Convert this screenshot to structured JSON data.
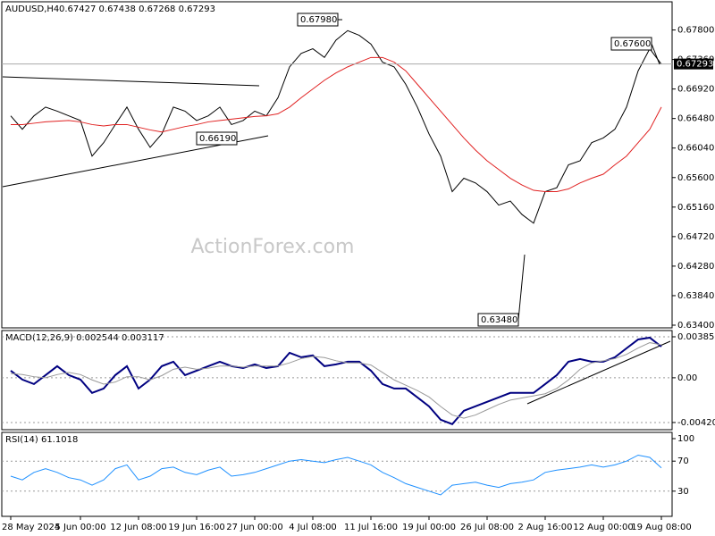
{
  "chart_data": [
    {
      "type": "line",
      "title": "AUDUSD,H4",
      "subtitle": "0.67427 0.67438 0.67268 0.67293",
      "watermark": "ActionForex.com",
      "categories": [
        "28 May 2024",
        null,
        null,
        null,
        null,
        null,
        "5 Jun 00:00",
        null,
        null,
        null,
        null,
        "12 Jun 08:00",
        null,
        null,
        null,
        null,
        "19 Jun 16:00",
        null,
        null,
        null,
        null,
        "27 Jun 00:00",
        null,
        null,
        null,
        null,
        "4 Jul 08:00",
        null,
        null,
        null,
        null,
        "11 Jul 16:00",
        null,
        null,
        null,
        null,
        "19 Jul 00:00",
        null,
        null,
        null,
        null,
        "26 Jul 08:00",
        null,
        null,
        null,
        null,
        "2 Aug 16:00",
        null,
        null,
        null,
        null,
        "12 Aug 00:00",
        null,
        null,
        null,
        null,
        "19 Aug 08:00"
      ],
      "series": [
        {
          "color": "#000000",
          "values": [
            0.6652,
            0.6632,
            0.6652,
            0.6665,
            0.6659,
            0.6652,
            0.6645,
            0.6592,
            0.6612,
            0.6639,
            0.6665,
            0.6632,
            0.6605,
            0.6625,
            0.6665,
            0.6659,
            0.6645,
            0.6652,
            0.6665,
            0.6639,
            0.6645,
            0.6659,
            0.6652,
            0.6679,
            0.6725,
            0.6745,
            0.6752,
            0.6739,
            0.6765,
            0.6779,
            0.6772,
            0.6759,
            0.6732,
            0.6725,
            0.6699,
            0.6665,
            0.6625,
            0.6592,
            0.6539,
            0.6559,
            0.6552,
            0.6539,
            0.6519,
            0.6525,
            0.6505,
            0.6492,
            0.6539,
            0.6545,
            0.6579,
            0.6585,
            0.6612,
            0.6619,
            0.6632,
            0.6665,
            0.6719,
            0.6752,
            0.6729
          ]
        },
        {
          "color": "#e02020",
          "values": [
            0.6639,
            0.6639,
            0.6641,
            0.6643,
            0.6644,
            0.6645,
            0.6643,
            0.6639,
            0.6637,
            0.6639,
            0.6639,
            0.6635,
            0.6631,
            0.6628,
            0.6632,
            0.6636,
            0.6639,
            0.6643,
            0.6645,
            0.6647,
            0.6649,
            0.6651,
            0.6652,
            0.6655,
            0.6665,
            0.6679,
            0.6692,
            0.6705,
            0.6716,
            0.6725,
            0.6732,
            0.6739,
            0.6739,
            0.6732,
            0.6719,
            0.6699,
            0.6679,
            0.6659,
            0.6639,
            0.6619,
            0.6601,
            0.6585,
            0.6572,
            0.6559,
            0.6549,
            0.6541,
            0.6539,
            0.6539,
            0.6543,
            0.6552,
            0.6559,
            0.6565,
            0.6579,
            0.6592,
            0.6612,
            0.6632,
            0.6665
          ]
        }
      ],
      "ylim": [
        0.6336,
        0.6822
      ],
      "yticks": [
        {
          "value": 0.634,
          "label": "0.63400"
        },
        {
          "value": 0.6384,
          "label": "0.63840"
        },
        {
          "value": 0.6428,
          "label": "0.64280"
        },
        {
          "value": 0.6472,
          "label": "0.64720"
        },
        {
          "value": 0.6516,
          "label": "0.65160"
        },
        {
          "value": 0.656,
          "label": "0.65600"
        },
        {
          "value": 0.6604,
          "label": "0.66040"
        },
        {
          "value": 0.6648,
          "label": "0.66480"
        },
        {
          "value": 0.6692,
          "label": "0.66920"
        },
        {
          "value": 0.6736,
          "label": "0.67360"
        },
        {
          "value": 0.678,
          "label": "0.67800"
        }
      ],
      "grid": false,
      "last_price": {
        "value": 0.67293,
        "label": "0.67293"
      },
      "annotations": [
        {
          "value": 0.6798,
          "label": "0.67980"
        },
        {
          "value": 0.6619,
          "label": "0.66190"
        },
        {
          "value": 0.676,
          "label": "0.67600"
        },
        {
          "value": 0.6348,
          "label": "0.63480"
        }
      ]
    },
    {
      "type": "line",
      "title": "MACD(12,26,9) 0.002544 0.003117",
      "series": [
        {
          "color": "#000080",
          "values": [
            0.00067,
            -0.00017,
            -0.00059,
            0.00025,
            0.00109,
            0.00025,
            -0.00017,
            -0.00142,
            -0.00101,
            0.00025,
            0.00109,
            -0.00101,
            -0.00017,
            0.00109,
            0.00151,
            0.00025,
            0.00067,
            0.00109,
            0.00151,
            0.00109,
            0.00092,
            0.00126,
            0.00092,
            0.00109,
            0.00235,
            0.00193,
            0.0021,
            0.00109,
            0.00126,
            0.00151,
            0.00151,
            0.00067,
            -0.00059,
            -0.00101,
            -0.00101,
            -0.00184,
            -0.00268,
            -0.00394,
            -0.00436,
            -0.0031,
            -0.00268,
            -0.00226,
            -0.00184,
            -0.00142,
            -0.00142,
            -0.00142,
            -0.00059,
            0.00025,
            0.00151,
            0.00176,
            0.00151,
            0.00151,
            0.00193,
            0.00277,
            0.0036,
            0.00377,
            0.00293
          ]
        },
        {
          "color": "#999999",
          "values": [
            0.0004,
            0.0003,
            0.0001,
            0.0,
            0.0003,
            0.0005,
            0.0003,
            -0.0002,
            -0.0006,
            -0.0004,
            0.0001,
            0.0001,
            -0.0002,
            0.0002,
            0.0008,
            0.001,
            0.0008,
            0.0009,
            0.0011,
            0.0011,
            0.001,
            0.0011,
            0.0011,
            0.0011,
            0.0014,
            0.0018,
            0.002,
            0.0019,
            0.0016,
            0.0014,
            0.0014,
            0.0012,
            0.0005,
            -0.0002,
            -0.0007,
            -0.0012,
            -0.0018,
            -0.0027,
            -0.0035,
            -0.0038,
            -0.0035,
            -0.003,
            -0.0025,
            -0.0021,
            -0.0019,
            -0.0017,
            -0.0015,
            -0.001,
            -0.0002,
            0.0008,
            0.0014,
            0.0016,
            0.0018,
            0.0022,
            0.0028,
            0.0033,
            0.0031
          ]
        }
      ],
      "ylim": [
        -0.00488,
        0.00444
      ],
      "yticks": [
        -0.004204,
        {
          "value": 0,
          "label": "0.00"
        },
        0.003852
      ],
      "grid": true
    },
    {
      "type": "line",
      "title": "RSI(14) 61.1018",
      "series": [
        {
          "color": "#1e90ff",
          "values": [
            50,
            45,
            55,
            60,
            55,
            48,
            45,
            38,
            45,
            60,
            65,
            45,
            50,
            60,
            62,
            55,
            52,
            58,
            62,
            50,
            52,
            55,
            60,
            65,
            70,
            72,
            70,
            68,
            72,
            75,
            70,
            65,
            55,
            48,
            40,
            35,
            30,
            25,
            38,
            40,
            42,
            38,
            35,
            40,
            42,
            45,
            55,
            58,
            60,
            62,
            65,
            62,
            65,
            70,
            78,
            75,
            61
          ]
        }
      ],
      "ylim": [
        0,
        100
      ],
      "yticks": [
        30,
        70,
        100
      ],
      "grid": true
    }
  ]
}
